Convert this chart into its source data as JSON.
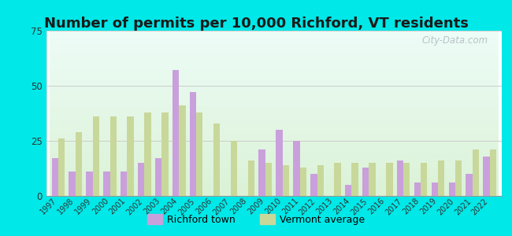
{
  "title": "Number of permits per 10,000 Richford, VT residents",
  "years": [
    1997,
    1998,
    1999,
    2000,
    2001,
    2002,
    2003,
    2004,
    2005,
    2006,
    2007,
    2008,
    2009,
    2010,
    2011,
    2012,
    2013,
    2014,
    2015,
    2016,
    2017,
    2018,
    2019,
    2020,
    2021,
    2022
  ],
  "richford": [
    17,
    11,
    11,
    11,
    11,
    15,
    17,
    57,
    47,
    0,
    0,
    0,
    21,
    30,
    25,
    10,
    0,
    5,
    13,
    0,
    16,
    6,
    6,
    6,
    10,
    18
  ],
  "vermont": [
    26,
    29,
    36,
    36,
    36,
    38,
    38,
    41,
    38,
    33,
    25,
    16,
    15,
    14,
    13,
    14,
    15,
    15,
    15,
    15,
    15,
    15,
    16,
    16,
    21,
    21
  ],
  "richford_color": "#c9a0dc",
  "vermont_color": "#c8d89a",
  "background_outer": "#00e8e8",
  "ylim": [
    0,
    75
  ],
  "yticks": [
    0,
    25,
    50,
    75
  ],
  "watermark": "City-Data.com",
  "legend_richford": "Richford town",
  "legend_vermont": "Vermont average",
  "title_fontsize": 13,
  "bar_width": 0.38
}
